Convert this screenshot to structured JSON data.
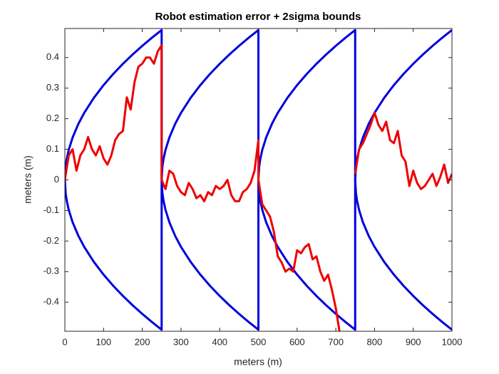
{
  "chart_data": {
    "type": "line",
    "title": "Robot estimation error + 2sigma bounds",
    "xlabel": "meters (m)",
    "ylabel": "meters (m)",
    "xlim": [
      0,
      1000
    ],
    "ylim": [
      -0.495,
      0.495
    ],
    "xticks": [
      0,
      100,
      200,
      300,
      400,
      500,
      600,
      700,
      800,
      900,
      1000
    ],
    "yticks": [
      -0.4,
      -0.3,
      -0.2,
      -0.1,
      0,
      0.1,
      0.2,
      0.3,
      0.4
    ],
    "grid": false,
    "box": true,
    "series": [
      {
        "color": "#0000dd",
        "x": [
          0,
          2,
          5,
          10,
          20,
          35,
          50,
          75,
          100,
          125,
          150,
          175,
          200,
          225,
          250,
          250,
          252,
          255,
          260,
          270,
          285,
          300,
          325,
          350,
          375,
          400,
          425,
          450,
          475,
          500,
          500,
          502,
          505,
          510,
          520,
          535,
          550,
          575,
          600,
          625,
          650,
          675,
          700,
          725,
          750,
          750,
          752,
          755,
          760,
          770,
          785,
          800,
          825,
          850,
          875,
          900,
          925,
          950,
          975,
          1000
        ],
        "values": [
          0,
          0.0438,
          0.0693,
          0.098,
          0.1386,
          0.1833,
          0.2191,
          0.2684,
          0.3099,
          0.3465,
          0.3795,
          0.41,
          0.4383,
          0.4648,
          0.49,
          0,
          0.0438,
          0.0693,
          0.098,
          0.1386,
          0.1833,
          0.2191,
          0.2684,
          0.3099,
          0.3465,
          0.3795,
          0.41,
          0.4383,
          0.4648,
          0.49,
          0,
          0.0438,
          0.0693,
          0.098,
          0.1386,
          0.1833,
          0.2191,
          0.2684,
          0.3099,
          0.3465,
          0.3795,
          0.41,
          0.4383,
          0.4648,
          0.49,
          0,
          0.0438,
          0.0693,
          0.098,
          0.1386,
          0.1833,
          0.2191,
          0.2684,
          0.3099,
          0.3465,
          0.3795,
          0.41,
          0.4383,
          0.4648,
          0.49
        ]
      },
      {
        "color": "#0000dd",
        "x": [
          0,
          2,
          5,
          10,
          20,
          35,
          50,
          75,
          100,
          125,
          150,
          175,
          200,
          225,
          250,
          250,
          252,
          255,
          260,
          270,
          285,
          300,
          325,
          350,
          375,
          400,
          425,
          450,
          475,
          500,
          500,
          502,
          505,
          510,
          520,
          535,
          550,
          575,
          600,
          625,
          650,
          675,
          700,
          725,
          750,
          750,
          752,
          755,
          760,
          770,
          785,
          800,
          825,
          850,
          875,
          900,
          925,
          950,
          975,
          1000
        ],
        "values": [
          0,
          -0.0438,
          -0.0693,
          -0.098,
          -0.1386,
          -0.1833,
          -0.2191,
          -0.2684,
          -0.3099,
          -0.3465,
          -0.3795,
          -0.41,
          -0.4383,
          -0.4648,
          -0.49,
          0,
          -0.0438,
          -0.0693,
          -0.098,
          -0.1386,
          -0.1833,
          -0.2191,
          -0.2684,
          -0.3099,
          -0.3465,
          -0.3795,
          -0.41,
          -0.4383,
          -0.4648,
          -0.49,
          0,
          -0.0438,
          -0.0693,
          -0.098,
          -0.1386,
          -0.1833,
          -0.2191,
          -0.2684,
          -0.3099,
          -0.3465,
          -0.3795,
          -0.41,
          -0.4383,
          -0.4648,
          -0.49,
          0,
          -0.0438,
          -0.0693,
          -0.098,
          -0.1386,
          -0.1833,
          -0.2191,
          -0.2684,
          -0.3099,
          -0.3465,
          -0.3795,
          -0.41,
          -0.4383,
          -0.4648,
          -0.49
        ]
      },
      {
        "color": "#ee0000",
        "x": [
          0,
          10,
          20,
          30,
          40,
          50,
          60,
          70,
          80,
          90,
          100,
          110,
          120,
          130,
          140,
          150,
          160,
          170,
          180,
          190,
          200,
          210,
          220,
          230,
          240,
          250,
          250,
          260,
          270,
          280,
          290,
          300,
          310,
          320,
          330,
          340,
          350,
          360,
          370,
          380,
          390,
          400,
          410,
          420,
          430,
          440,
          450,
          460,
          470,
          480,
          490,
          500,
          500,
          510,
          520,
          530,
          540,
          550,
          560,
          570,
          580,
          590,
          600,
          610,
          620,
          630,
          640,
          650,
          660,
          670,
          680,
          690,
          700,
          710,
          730,
          750,
          760,
          770,
          780,
          790,
          800,
          810,
          820,
          830,
          840,
          850,
          860,
          870,
          880,
          890,
          900,
          910,
          920,
          930,
          940,
          950,
          960,
          970,
          980,
          990,
          1000
        ],
        "values": [
          0,
          0.08,
          0.1,
          0.03,
          0.08,
          0.1,
          0.14,
          0.1,
          0.08,
          0.11,
          0.07,
          0.05,
          0.08,
          0.13,
          0.15,
          0.16,
          0.27,
          0.23,
          0.32,
          0.37,
          0.38,
          0.4,
          0.4,
          0.38,
          0.42,
          0.44,
          0,
          -0.03,
          0.03,
          0.02,
          -0.02,
          -0.04,
          -0.05,
          -0.01,
          -0.03,
          -0.06,
          -0.05,
          -0.07,
          -0.04,
          -0.05,
          -0.02,
          -0.03,
          -0.02,
          0,
          -0.05,
          -0.07,
          -0.07,
          -0.04,
          -0.03,
          -0.01,
          0.03,
          0.13,
          0,
          -0.08,
          -0.1,
          -0.12,
          -0.17,
          -0.25,
          -0.27,
          -0.3,
          -0.29,
          -0.3,
          -0.23,
          -0.24,
          -0.22,
          -0.21,
          -0.26,
          -0.25,
          -0.3,
          -0.33,
          -0.31,
          -0.36,
          -0.42,
          -0.5,
          null,
          0.02,
          0.1,
          0.12,
          0.15,
          0.18,
          0.22,
          0.18,
          0.16,
          0.19,
          0.13,
          0.12,
          0.16,
          0.08,
          0.06,
          -0.02,
          0.03,
          -0.01,
          -0.03,
          -0.02,
          0,
          0.02,
          -0.02,
          0.01,
          0.05,
          -0.01,
          0.02
        ]
      }
    ]
  }
}
